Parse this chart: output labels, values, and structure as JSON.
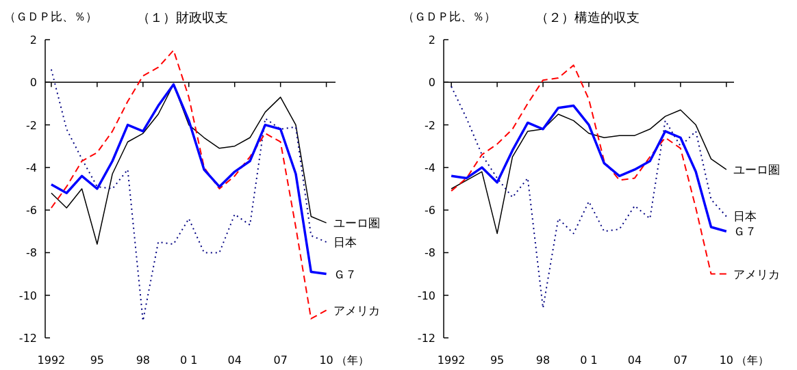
{
  "chart_data": [
    {
      "type": "line",
      "title": "（１）財政収支",
      "ylabel": "（ＧＤＰ比、％）",
      "xlabel": "（年）",
      "x": [
        1992,
        1993,
        1994,
        1995,
        1996,
        1997,
        1998,
        1999,
        2000,
        2001,
        2002,
        2003,
        2004,
        2005,
        2006,
        2007,
        2008,
        2009,
        2010
      ],
      "xlim": [
        1991.6,
        2010.6
      ],
      "xticks": [
        {
          "value": 1992,
          "label": "1992"
        },
        {
          "value": 1995,
          "label": "95"
        },
        {
          "value": 1998,
          "label": "98"
        },
        {
          "value": 2001,
          "label": "0 1"
        },
        {
          "value": 2004,
          "label": "04"
        },
        {
          "value": 2007,
          "label": "07"
        },
        {
          "value": 2010,
          "label": "10"
        }
      ],
      "ylim": [
        -12,
        2
      ],
      "yticks": [
        -12,
        -10,
        -8,
        -6,
        -4,
        -2,
        0,
        2
      ],
      "series": [
        {
          "name": "ユーロ圏",
          "color": "#000000",
          "line_style": "solid",
          "values": [
            -5.2,
            -5.9,
            -5.0,
            -7.6,
            -4.3,
            -2.8,
            -2.4,
            -1.5,
            -0.1,
            -2.0,
            -2.6,
            -3.1,
            -3.0,
            -2.6,
            -1.4,
            -0.7,
            -2.0,
            -6.3,
            -6.6
          ]
        },
        {
          "name": "日本",
          "color": "#000080",
          "line_style": "dotted",
          "values": [
            0.6,
            -2.2,
            -3.6,
            -4.9,
            -5.0,
            -4.1,
            -11.2,
            -7.5,
            -7.6,
            -6.4,
            -8.0,
            -8.0,
            -6.2,
            -6.7,
            -1.7,
            -2.2,
            -2.1,
            -7.2,
            -7.5
          ]
        },
        {
          "name": "アメリカ",
          "color": "#ff0000",
          "line_style": "dashed",
          "values": [
            -5.9,
            -4.9,
            -3.7,
            -3.3,
            -2.3,
            -0.9,
            0.3,
            0.7,
            1.5,
            -0.7,
            -4.0,
            -5.0,
            -4.4,
            -3.5,
            -2.4,
            -2.8,
            -6.8,
            -11.1,
            -10.7
          ]
        },
        {
          "name": "Ｇ７",
          "color": "#0000ff",
          "line_style": "solid",
          "values": [
            -4.8,
            -5.2,
            -4.4,
            -5.0,
            -3.7,
            -2.0,
            -2.3,
            -1.1,
            -0.1,
            -1.8,
            -4.1,
            -4.9,
            -4.2,
            -3.7,
            -2.0,
            -2.2,
            -4.3,
            -8.9,
            -9.0
          ]
        }
      ]
    },
    {
      "type": "line",
      "title": "（２）構造的収支",
      "ylabel": "（ＧＤＰ比、％）",
      "xlabel": "（年）",
      "x": [
        1992,
        1993,
        1994,
        1995,
        1996,
        1997,
        1998,
        1999,
        2000,
        2001,
        2002,
        2003,
        2004,
        2005,
        2006,
        2007,
        2008,
        2009,
        2010
      ],
      "xlim": [
        1991.5,
        2010.5
      ],
      "xticks": [
        {
          "value": 1992,
          "label": "1992"
        },
        {
          "value": 1995,
          "label": "95"
        },
        {
          "value": 1998,
          "label": "98"
        },
        {
          "value": 2001,
          "label": "0 1"
        },
        {
          "value": 2004,
          "label": "04"
        },
        {
          "value": 2007,
          "label": "07"
        },
        {
          "value": 2010,
          "label": "10"
        }
      ],
      "ylim": [
        -12,
        2
      ],
      "yticks": [
        -12,
        -10,
        -8,
        -6,
        -4,
        -2,
        0,
        2
      ],
      "series": [
        {
          "name": "ユーロ圏",
          "color": "#000000",
          "line_style": "solid",
          "values": [
            -5.0,
            -4.6,
            -4.2,
            -7.1,
            -3.5,
            -2.3,
            -2.2,
            -1.5,
            -1.8,
            -2.4,
            -2.6,
            -2.5,
            -2.5,
            -2.2,
            -1.6,
            -1.3,
            -2.0,
            -3.6,
            -4.1
          ]
        },
        {
          "name": "日本",
          "color": "#000080",
          "line_style": "dotted",
          "values": [
            -0.2,
            -1.7,
            -3.4,
            -4.5,
            -5.4,
            -4.5,
            -10.6,
            -6.4,
            -7.1,
            -5.6,
            -7.0,
            -6.9,
            -5.8,
            -6.4,
            -1.8,
            -3.0,
            -2.3,
            -5.5,
            -6.3
          ]
        },
        {
          "name": "アメリカ",
          "color": "#ff0000",
          "line_style": "dashed",
          "values": [
            -5.1,
            -4.5,
            -3.4,
            -2.9,
            -2.2,
            -1.0,
            0.1,
            0.2,
            0.8,
            -0.8,
            -3.7,
            -4.6,
            -4.5,
            -3.5,
            -2.6,
            -3.1,
            -5.9,
            -9.0,
            -9.0
          ]
        },
        {
          "name": "Ｇ７",
          "color": "#0000ff",
          "line_style": "solid",
          "values": [
            -4.4,
            -4.5,
            -4.0,
            -4.7,
            -3.2,
            -1.9,
            -2.2,
            -1.2,
            -1.1,
            -2.0,
            -3.8,
            -4.4,
            -4.1,
            -3.7,
            -2.3,
            -2.6,
            -4.2,
            -6.8,
            -7.0
          ]
        }
      ]
    }
  ]
}
